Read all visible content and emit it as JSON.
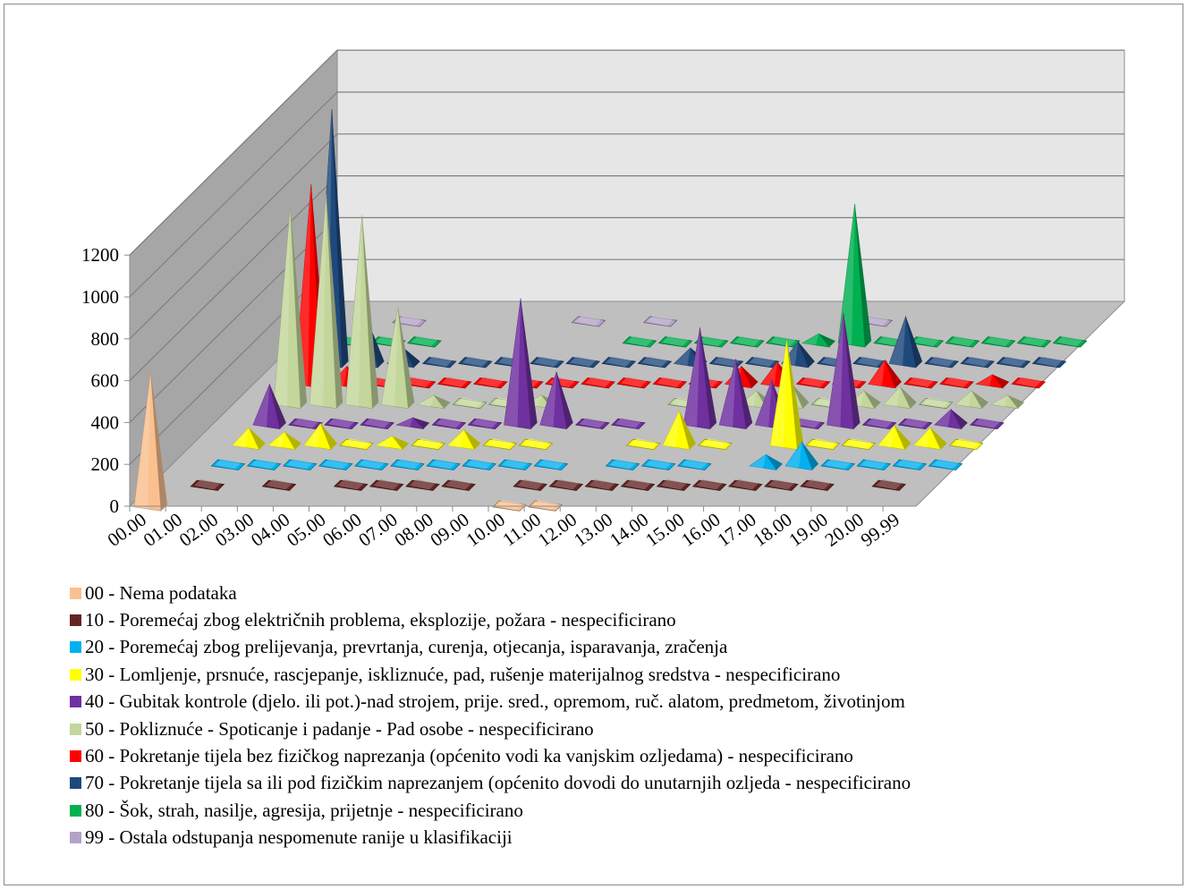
{
  "chart_data": {
    "type": "3d-column",
    "categories": [
      "00.00",
      "01.00",
      "02.00",
      "03.00",
      "04.00",
      "05.00",
      "06.00",
      "07.00",
      "08.00",
      "09.00",
      "10.00",
      "11.00",
      "12.00",
      "13.00",
      "14.00",
      "15.00",
      "16.00",
      "17.00",
      "18.00",
      "19.00",
      "20.00",
      "99.99"
    ],
    "ylim": [
      0,
      1200
    ],
    "yticks": [
      "0",
      "200",
      "400",
      "600",
      "800",
      "1000",
      "1200"
    ],
    "grid": true,
    "legend_position": "bottom",
    "series": [
      {
        "name": "00 - Nema podataka",
        "color": "#FAC090",
        "values": [
          640,
          0,
          0,
          0,
          0,
          0,
          0,
          0,
          0,
          0,
          10,
          10,
          0,
          0,
          0,
          0,
          0,
          0,
          0,
          0,
          0,
          0
        ]
      },
      {
        "name": "10 - Poremećaj zbog električnih problema, eksplozije, požara - nespecificirano",
        "color": "#632523",
        "values": [
          0,
          10,
          0,
          10,
          0,
          10,
          10,
          10,
          10,
          0,
          10,
          10,
          10,
          10,
          10,
          10,
          10,
          10,
          10,
          0,
          10,
          0
        ]
      },
      {
        "name": "20 - Poremećaj zbog prelijevanja, prevrtanja, curenja, otjecanja, isparavanja, zračenja",
        "color": "#00B0F0",
        "values": [
          0,
          10,
          10,
          10,
          10,
          10,
          10,
          10,
          10,
          10,
          10,
          0,
          10,
          10,
          10,
          0,
          50,
          110,
          10,
          10,
          10,
          10
        ]
      },
      {
        "name": "30 - Lomljenje, prsnuće, rascjepanje, iskliznuće, pad, rušenje materijalnog sredstva - nespecificirano",
        "color": "#FFFF00",
        "values": [
          0,
          80,
          60,
          100,
          20,
          40,
          20,
          70,
          20,
          20,
          0,
          0,
          20,
          160,
          20,
          0,
          500,
          20,
          20,
          90,
          80,
          20
        ]
      },
      {
        "name": "40 - Gubitak kontrole (djelo. ili pot.)-nad strojem, prije. sred., opremom, ruč. alatom, predmetom, životinjom",
        "color": "#7030A0",
        "values": [
          0,
          190,
          20,
          20,
          20,
          30,
          20,
          20,
          600,
          250,
          20,
          20,
          0,
          460,
          310,
          210,
          20,
          530,
          20,
          20,
          70,
          20
        ]
      },
      {
        "name": "50 - Pokliznuće - Spoticanje i padanje - Pad osobe - nespecificirano",
        "color": "#C3D69B",
        "values": [
          0,
          940,
          1000,
          900,
          460,
          40,
          20,
          20,
          40,
          0,
          0,
          0,
          20,
          0,
          60,
          90,
          20,
          60,
          80,
          20,
          60,
          40
        ]
      },
      {
        "name": "60 - Pokretanje tijela bez fizičkog naprezanja (općenito vodi ka vanjskim ozljedama) - nespecificirano",
        "color": "#FF0000",
        "values": [
          0,
          950,
          80,
          10,
          10,
          10,
          10,
          10,
          10,
          10,
          10,
          10,
          10,
          80,
          100,
          10,
          10,
          110,
          10,
          10,
          40,
          10
        ]
      },
      {
        "name": "70 - Pokretanje tijela sa ili pod fizičkim naprezanjem (općenito dovodi do unutarnjih ozljeda - nespecificirano",
        "color": "#1F497D",
        "values": [
          0,
          1210,
          200,
          70,
          10,
          10,
          10,
          10,
          10,
          10,
          10,
          70,
          10,
          10,
          100,
          10,
          10,
          220,
          10,
          10,
          10,
          10
        ]
      },
      {
        "name": "80 - Šok, strah, nasilje, agresija, prijetnje - nespecificirano",
        "color": "#00B050",
        "values": [
          0,
          10,
          10,
          10,
          0,
          0,
          0,
          0,
          0,
          10,
          10,
          10,
          10,
          10,
          40,
          660,
          10,
          10,
          10,
          10,
          10,
          10
        ]
      },
      {
        "name": "99 - Ostala odstupanja nespomenute ranije u klasifikaciji",
        "color": "#B3A2C7",
        "values": [
          0,
          0,
          10,
          0,
          0,
          0,
          0,
          10,
          0,
          10,
          0,
          0,
          0,
          0,
          0,
          10,
          0,
          0,
          0,
          0,
          0,
          0
        ]
      }
    ]
  }
}
